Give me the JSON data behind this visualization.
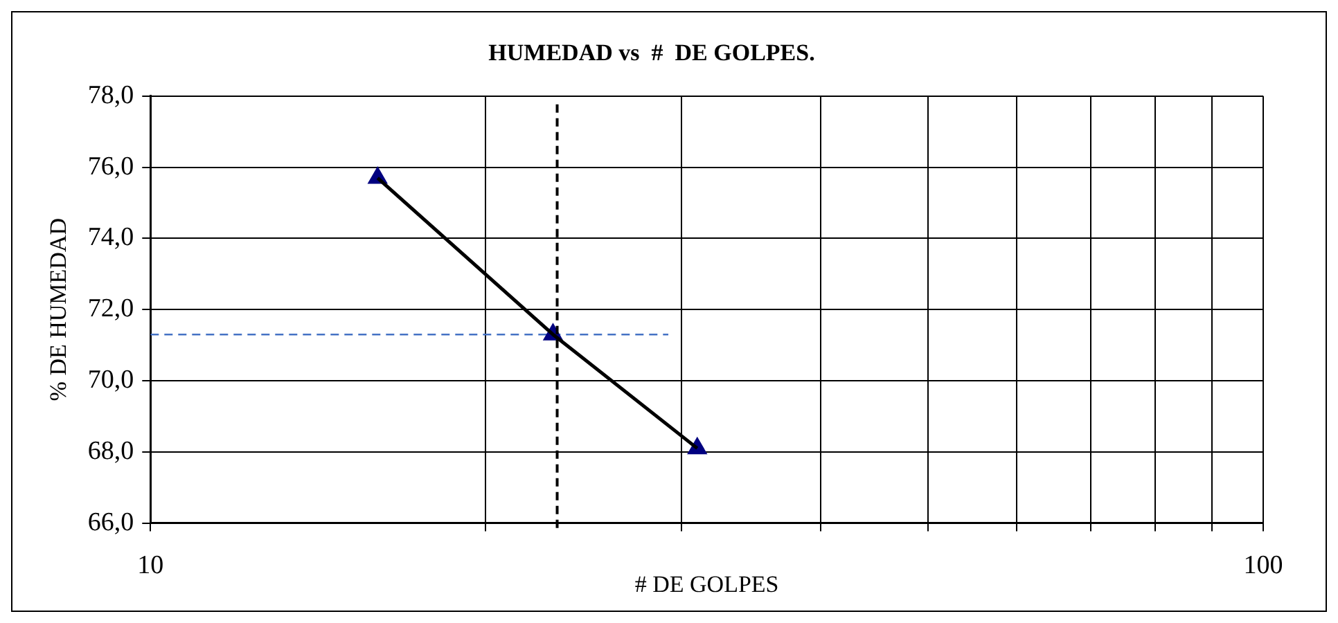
{
  "chart_data": {
    "type": "scatter",
    "title": "HUMEDAD vs  #  DE GOLPES.",
    "xlabel": "# DE GOLPES",
    "ylabel": "% DE HUMEDAD",
    "log": "x",
    "grid": true,
    "legend": false,
    "xlim": [
      10,
      100
    ],
    "xticks": [
      10,
      {
        "value": 20,
        "label": null
      },
      {
        "value": 30,
        "label": null
      },
      {
        "value": 40,
        "label": null
      },
      {
        "value": 50,
        "label": null
      },
      {
        "value": 60,
        "label": null
      },
      {
        "value": 70,
        "label": null
      },
      {
        "value": 80,
        "label": null
      },
      {
        "value": 90,
        "label": null
      },
      100
    ],
    "ylim": [
      66,
      78
    ],
    "yticks": [
      {
        "value": 66,
        "label": "66,0"
      },
      {
        "value": 68,
        "label": "68,0"
      },
      {
        "value": 70,
        "label": "70,0"
      },
      {
        "value": 72,
        "label": "72,0"
      },
      {
        "value": 74,
        "label": "74,0"
      },
      {
        "value": 76,
        "label": "76,0"
      },
      {
        "value": 78,
        "label": "78,0"
      }
    ],
    "series": [
      {
        "type": "line",
        "color": "#000000",
        "marker": "none",
        "line_style": "solid",
        "x": [
          16.0,
          23.0,
          31.0
        ],
        "values": [
          75.7,
          71.3,
          68.1
        ]
      },
      {
        "type": "scatter",
        "color": "#000080",
        "marker": "triangle",
        "x": [
          16.0,
          23.0,
          31.0
        ],
        "values": [
          75.7,
          71.3,
          68.1
        ]
      },
      {
        "type": "line",
        "color": "#4472c4",
        "marker": "none",
        "line_style": "dashed",
        "x": [
          10,
          29.2
        ],
        "values": [
          71.3,
          71.3
        ]
      }
    ],
    "ref_lines": [
      {
        "axis": "x",
        "value": 23.2,
        "label": null,
        "color": "#000000",
        "line_style": "dashed"
      }
    ]
  }
}
